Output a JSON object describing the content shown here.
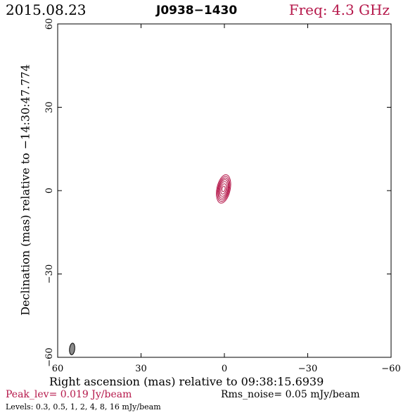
{
  "header": {
    "date": "2015.08.23",
    "source": "J0938−1430",
    "frequency": "Freq: 4.3 GHz"
  },
  "footer": {
    "peak": "Peak_lev=  0.019 Jy/beam",
    "rms": "Rms_noise= 0.05 mJy/beam",
    "levels": "Levels: 0.3, 0.5,    1,    2,    4,    8,   16 mJy/beam"
  },
  "chart_data": {
    "type": "contour",
    "xlabel": "Right ascension (mas) relative to 09:38:15.6939",
    "ylabel": "Declination (mas) relative to −14:30:47.774",
    "xlim": [
      60,
      -60
    ],
    "ylim": [
      -60,
      60
    ],
    "x_ticks": [
      60,
      30,
      0,
      -30,
      -60
    ],
    "y_ticks": [
      60,
      30,
      0,
      -30,
      -60
    ],
    "x_tick_labels": [
      "60",
      "30",
      "0",
      "−30",
      "−60"
    ],
    "y_tick_labels": [
      "60",
      "30",
      "0",
      "−30",
      "−60"
    ],
    "contour_levels_mJy": [
      0.3,
      0.5,
      1,
      2,
      4,
      8,
      16
    ],
    "peak_Jy_per_beam": 0.019,
    "rms_noise_mJy_per_beam": 0.05,
    "source_component": {
      "center_mas": [
        0.3,
        0.6
      ],
      "contours": [
        {
          "level_mJy": 0.3,
          "semi_major_mas": 5.2,
          "semi_minor_mas": 2.4,
          "pa_deg": 12
        },
        {
          "level_mJy": 0.5,
          "semi_major_mas": 4.6,
          "semi_minor_mas": 2.1,
          "pa_deg": 12
        },
        {
          "level_mJy": 1,
          "semi_major_mas": 4.0,
          "semi_minor_mas": 1.85,
          "pa_deg": 12
        },
        {
          "level_mJy": 2,
          "semi_major_mas": 3.4,
          "semi_minor_mas": 1.6,
          "pa_deg": 12
        },
        {
          "level_mJy": 4,
          "semi_major_mas": 2.7,
          "semi_minor_mas": 1.3,
          "pa_deg": 12
        },
        {
          "level_mJy": 8,
          "semi_major_mas": 1.9,
          "semi_minor_mas": 0.95,
          "pa_deg": 12
        },
        {
          "level_mJy": 16,
          "semi_major_mas": 1.0,
          "semi_minor_mas": 0.55,
          "pa_deg": 12
        }
      ]
    },
    "beam": {
      "center_mas": [
        54.8,
        -57.0
      ],
      "semi_major_mas": 2.1,
      "semi_minor_mas": 0.95,
      "pa_deg": 6
    },
    "colors": {
      "contour": "#b5174a",
      "beam_fill": "#8a8a8a",
      "axis": "#000000",
      "accent_text": "#b5174a"
    }
  }
}
